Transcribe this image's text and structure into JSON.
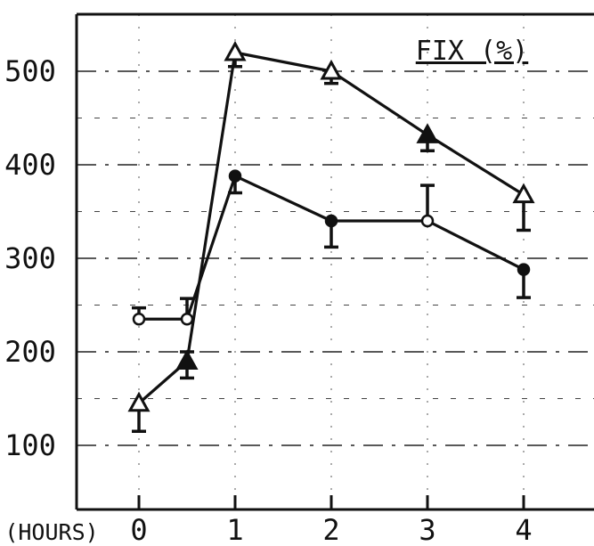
{
  "chart_data": {
    "type": "line",
    "title": "FIX (%)",
    "xlabel": "(HOURS)",
    "ylabel": "",
    "x_ticks": [
      "0",
      "1",
      "2",
      "3",
      "4"
    ],
    "y_ticks": [
      "100",
      "200",
      "300",
      "400",
      "500"
    ],
    "xlim": [
      -0.65,
      4.65
    ],
    "ylim": [
      50,
      565
    ],
    "grid": true,
    "series": [
      {
        "marker": "triangle",
        "x": [
          0,
          0.5,
          1,
          2,
          3,
          4
        ],
        "y": [
          145,
          190,
          520,
          500,
          432,
          368
        ],
        "err_low": [
          115,
          172,
          505,
          487,
          415,
          330
        ],
        "err_high": [
          145,
          200,
          520,
          500,
          432,
          368
        ],
        "filled": [
          false,
          true,
          false,
          false,
          true,
          false
        ]
      },
      {
        "marker": "circle",
        "x": [
          0,
          0.5,
          1,
          2,
          3,
          4
        ],
        "y": [
          235,
          235,
          388,
          340,
          340,
          288
        ],
        "err_low": [
          235,
          235,
          370,
          312,
          340,
          258
        ],
        "err_high": [
          247,
          257,
          388,
          340,
          378,
          288
        ],
        "filled": [
          false,
          false,
          true,
          true,
          false,
          true
        ]
      }
    ]
  }
}
